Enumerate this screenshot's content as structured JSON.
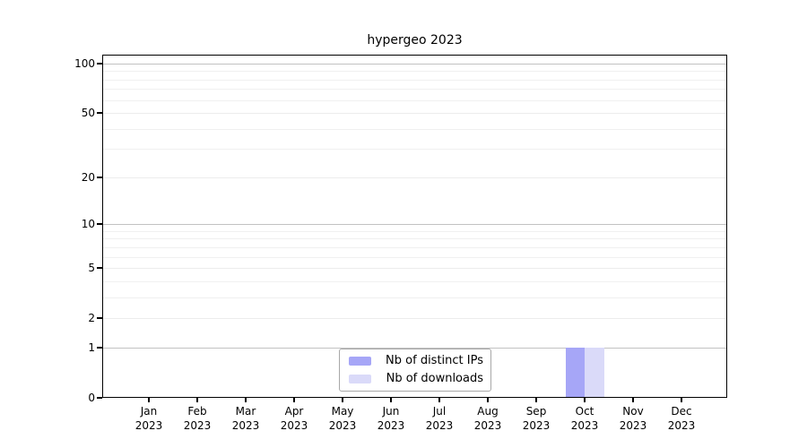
{
  "chart_data": {
    "type": "bar",
    "title": "hypergeo 2023",
    "yscale": "log1p",
    "ylim": [
      0,
      113
    ],
    "yticks": [
      0,
      1,
      2,
      5,
      10,
      20,
      50,
      100
    ],
    "major_gridlines": [
      1,
      10,
      100
    ],
    "light_gridlines": [
      2,
      5,
      20,
      50
    ],
    "minor_gridlines": [
      3,
      4,
      6,
      7,
      8,
      9,
      30,
      40,
      60,
      70,
      80,
      90
    ],
    "grid": true,
    "legend_position": "bottom-center-inside",
    "categories": [
      {
        "month": "Jan",
        "year": "2023"
      },
      {
        "month": "Feb",
        "year": "2023"
      },
      {
        "month": "Mar",
        "year": "2023"
      },
      {
        "month": "Apr",
        "year": "2023"
      },
      {
        "month": "May",
        "year": "2023"
      },
      {
        "month": "Jun",
        "year": "2023"
      },
      {
        "month": "Jul",
        "year": "2023"
      },
      {
        "month": "Aug",
        "year": "2023"
      },
      {
        "month": "Sep",
        "year": "2023"
      },
      {
        "month": "Oct",
        "year": "2023"
      },
      {
        "month": "Nov",
        "year": "2023"
      },
      {
        "month": "Dec",
        "year": "2023"
      }
    ],
    "series": [
      {
        "name": "Nb of distinct IPs",
        "color": "#a6a6f7",
        "values": [
          0,
          0,
          0,
          0,
          0,
          0,
          0,
          0,
          0,
          1,
          0,
          0
        ]
      },
      {
        "name": "Nb of downloads",
        "color": "#dadaf9",
        "values": [
          0,
          0,
          0,
          0,
          0,
          0,
          0,
          0,
          0,
          1,
          0,
          0
        ]
      }
    ]
  },
  "legend": {
    "items": [
      {
        "label": "Nb of distinct IPs"
      },
      {
        "label": "Nb of downloads"
      }
    ]
  }
}
